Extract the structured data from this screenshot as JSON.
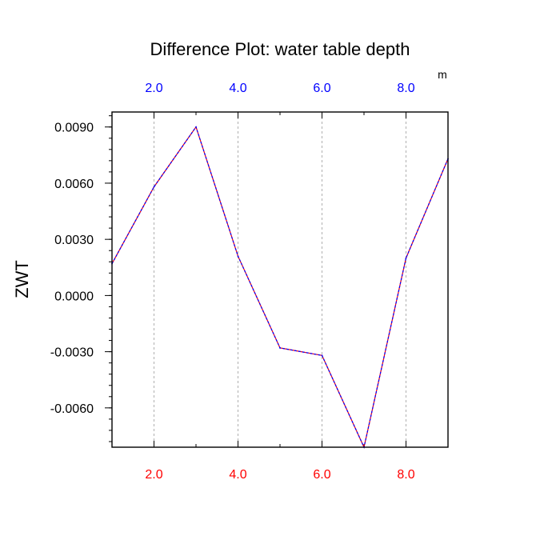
{
  "chart_data": {
    "type": "line",
    "title": "Difference Plot: water table depth",
    "units": "m",
    "ylabel": "ZWT",
    "xlim": [
      1,
      9
    ],
    "ylim": [
      -0.0081,
      0.0098
    ],
    "x_major_ticks": [
      2,
      4,
      6,
      8
    ],
    "x_minor_ticks": [
      1,
      3,
      5,
      7,
      9
    ],
    "x_tick_labels": [
      "2.0",
      "4.0",
      "6.0",
      "8.0"
    ],
    "y_major_ticks": [
      0.009,
      0.006,
      0.003,
      0.0,
      -0.003,
      -0.006
    ],
    "y_tick_labels": [
      "0.0090",
      "0.0060",
      "0.0030",
      "0.0000",
      "-0.0030",
      "-0.0060"
    ],
    "y_minor_step": 0.0006,
    "grid": "vertical dashed at major x ticks",
    "colors": {
      "bottom_axis_labels": "#ff0000",
      "top_axis_labels": "#0000ff",
      "line_red": "#ff0000",
      "line_blue": "#0000ff"
    },
    "series": [
      {
        "x": [
          1,
          2,
          3,
          4,
          5,
          6,
          7,
          8,
          9
        ],
        "y": [
          0.0017,
          0.0058,
          0.009,
          0.0021,
          -0.0028,
          -0.0032,
          -0.0081,
          0.002,
          0.0073
        ]
      }
    ]
  }
}
